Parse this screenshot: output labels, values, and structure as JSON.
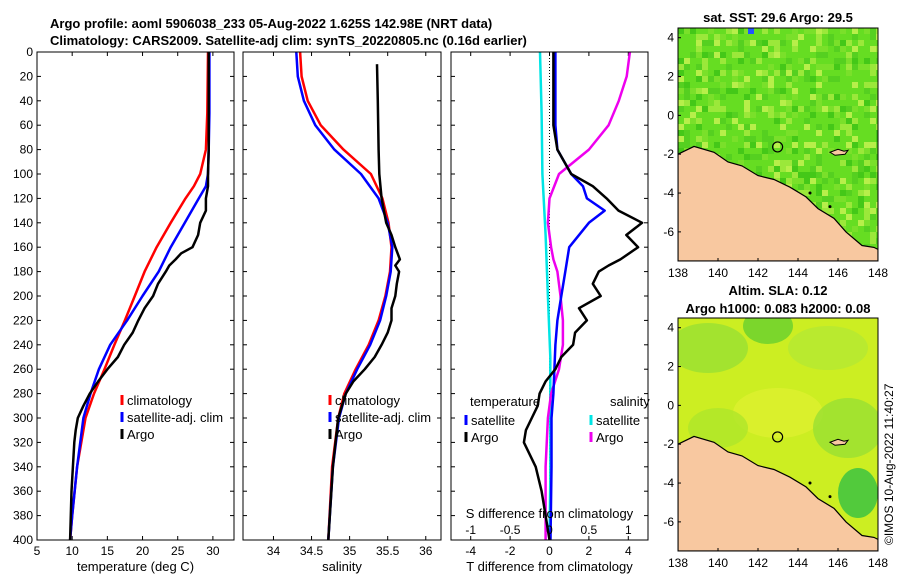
{
  "titles": {
    "line1": "Argo profile: aoml 5906038_233 05-Aug-2022 1.625S 142.98E (NRT data)",
    "line2": "Climatology: CARS2009. Satellite-adj clim: synTS_20220805.nc (0.16d earlier)"
  },
  "copyright": "©IMOS 10-Aug-2022 11:40:27",
  "colors": {
    "climatology": "#ff0000",
    "satellite": "#0000ff",
    "argo": "#000000",
    "sal_sat": "#00e5e5",
    "sal_argo": "#ee00ee",
    "land": "#f8c8a0"
  },
  "chart_data": [
    {
      "type": "line",
      "name": "temperature",
      "xlabel": "temperature (deg C)",
      "ylabel": "",
      "xlim": [
        5,
        33
      ],
      "ylim": [
        400,
        0
      ],
      "xticks": [
        5,
        10,
        15,
        20,
        25,
        30
      ],
      "xtick_labels": [
        "5",
        "10",
        "15",
        "20",
        "25",
        "30"
      ],
      "yticks": [
        0,
        20,
        40,
        60,
        80,
        100,
        120,
        140,
        160,
        180,
        200,
        220,
        240,
        260,
        280,
        300,
        320,
        340,
        360,
        380,
        400
      ],
      "ytick_labels": [
        "0",
        "20",
        "40",
        "60",
        "80",
        "100",
        "120",
        "140",
        "160",
        "180",
        "200",
        "220",
        "240",
        "260",
        "280",
        "300",
        "320",
        "340",
        "360",
        "380",
        "400"
      ],
      "legend": {
        "position": "bottom-right",
        "entries": [
          "climatology",
          "satellite-adj. clim",
          "Argo"
        ]
      },
      "series": [
        {
          "name": "climatology",
          "color": "#ff0000",
          "depth": [
            0,
            50,
            80,
            100,
            110,
            120,
            140,
            160,
            180,
            200,
            220,
            240,
            260,
            280,
            300,
            340,
            380,
            400
          ],
          "values": [
            29.3,
            29.2,
            29.0,
            28.2,
            27.3,
            26.1,
            24.0,
            22.0,
            20.3,
            18.9,
            17.5,
            16.0,
            14.6,
            13.1,
            11.9,
            10.7,
            10.0,
            9.7
          ]
        },
        {
          "name": "satellite-adj. clim",
          "color": "#0000ff",
          "depth": [
            0,
            50,
            80,
            100,
            110,
            120,
            140,
            160,
            180,
            200,
            220,
            240,
            260,
            280,
            300,
            340,
            380,
            400
          ],
          "values": [
            29.5,
            29.5,
            29.4,
            29.3,
            29.0,
            28.0,
            26.0,
            24.0,
            22.3,
            20.0,
            17.8,
            15.4,
            13.8,
            12.6,
            11.6,
            10.7,
            10.0,
            9.7
          ]
        },
        {
          "name": "Argo",
          "color": "#000000",
          "depth": [
            0,
            50,
            80,
            100,
            110,
            120,
            130,
            140,
            150,
            160,
            165,
            170,
            175,
            180,
            190,
            200,
            210,
            220,
            230,
            240,
            250,
            260,
            270,
            280,
            290,
            300,
            310,
            320,
            340,
            360,
            380,
            400
          ],
          "values": [
            29.4,
            29.4,
            29.4,
            29.3,
            29.3,
            29.0,
            29.0,
            28.2,
            27.9,
            27.1,
            25.5,
            24.7,
            23.8,
            23.3,
            22.2,
            21.5,
            20.3,
            19.4,
            18.6,
            17.4,
            16.5,
            15.0,
            13.7,
            12.5,
            11.6,
            10.8,
            10.5,
            10.3,
            10.1,
            9.9,
            9.8,
            9.7
          ]
        }
      ]
    },
    {
      "type": "line",
      "name": "salinity",
      "xlabel": "salinity",
      "ylabel": "",
      "xlim": [
        33.6,
        36.2
      ],
      "ylim": [
        400,
        0
      ],
      "xticks": [
        34,
        34.5,
        35,
        35.5,
        36
      ],
      "xtick_labels": [
        "34",
        "34.5",
        "35",
        "35.5",
        "36"
      ],
      "legend": {
        "position": "bottom-right",
        "entries": [
          "climatology",
          "satellite-adj. clim",
          "Argo"
        ]
      },
      "series": [
        {
          "name": "climatology",
          "color": "#ff0000",
          "depth": [
            0,
            20,
            40,
            60,
            80,
            100,
            120,
            140,
            160,
            180,
            200,
            220,
            240,
            260,
            280,
            300,
            340,
            400
          ],
          "values": [
            34.35,
            34.37,
            34.45,
            34.62,
            34.92,
            35.28,
            35.43,
            35.51,
            35.55,
            35.53,
            35.47,
            35.38,
            35.25,
            35.08,
            34.93,
            34.85,
            34.77,
            34.72
          ]
        },
        {
          "name": "satellite-adj. clim",
          "color": "#0000ff",
          "depth": [
            0,
            20,
            40,
            60,
            80,
            100,
            120,
            140,
            160,
            180,
            200,
            220,
            240,
            260,
            280,
            300,
            340,
            400
          ],
          "values": [
            34.3,
            34.32,
            34.4,
            34.55,
            34.8,
            35.15,
            35.38,
            35.5,
            35.56,
            35.54,
            35.48,
            35.4,
            35.27,
            35.1,
            34.95,
            34.86,
            34.78,
            34.72
          ]
        },
        {
          "name": "Argo",
          "color": "#000000",
          "depth": [
            10,
            40,
            80,
            100,
            120,
            140,
            150,
            160,
            170,
            175,
            180,
            190,
            200,
            210,
            220,
            230,
            240,
            250,
            260,
            270,
            280,
            300,
            340,
            400
          ],
          "values": [
            35.36,
            35.37,
            35.38,
            35.39,
            35.42,
            35.48,
            35.55,
            35.6,
            35.66,
            35.6,
            35.65,
            35.62,
            35.6,
            35.55,
            35.55,
            35.5,
            35.42,
            35.33,
            35.2,
            35.05,
            34.95,
            34.85,
            34.78,
            34.72
          ]
        }
      ]
    },
    {
      "type": "line",
      "name": "difference from climatology",
      "xlabel": "T difference from climatology",
      "x2label": "S difference from climatology",
      "xlim": [
        -5,
        5
      ],
      "x2lim": [
        -1.25,
        1.25
      ],
      "ylim": [
        400,
        0
      ],
      "xticks": [
        -4,
        -2,
        0,
        2,
        4
      ],
      "xtick_labels": [
        "-4",
        "-2",
        "0",
        "2",
        "4"
      ],
      "x2ticks": [
        -1,
        -0.5,
        0,
        0.5,
        1
      ],
      "x2tick_labels": [
        "-1",
        "-0.5",
        "0",
        "0.5",
        "1"
      ],
      "legend_temperature": {
        "title": "temperature",
        "entries": [
          "satellite",
          "Argo"
        ]
      },
      "legend_salinity": {
        "title": "salinity",
        "entries": [
          "satellite",
          "Argo"
        ]
      },
      "series": [
        {
          "name": "T satellite",
          "color": "#0000ff",
          "depth": [
            0,
            60,
            80,
            100,
            110,
            120,
            130,
            140,
            160,
            180,
            200,
            220,
            240,
            260,
            280,
            300,
            340,
            400
          ],
          "values": [
            0.3,
            0.3,
            0.4,
            1.1,
            1.7,
            1.9,
            2.8,
            2.0,
            1.0,
            0.8,
            0.6,
            0.4,
            0.3,
            0.25,
            0.2,
            0.1,
            0.1,
            0.05
          ]
        },
        {
          "name": "T Argo",
          "color": "#000000",
          "depth": [
            0,
            60,
            80,
            100,
            110,
            120,
            130,
            140,
            150,
            160,
            170,
            175,
            180,
            190,
            200,
            210,
            220,
            230,
            240,
            250,
            260,
            270,
            280,
            290,
            300,
            310,
            320,
            340,
            360,
            380,
            400
          ],
          "values": [
            0.2,
            0.2,
            0.4,
            1.1,
            2.2,
            2.9,
            3.5,
            4.7,
            3.9,
            4.5,
            3.6,
            3.0,
            2.5,
            2.2,
            2.6,
            1.5,
            1.9,
            1.3,
            1.2,
            0.6,
            0.3,
            -0.2,
            -0.5,
            -0.6,
            -0.9,
            -1.2,
            -1.3,
            -0.7,
            -0.4,
            -0.2,
            0
          ]
        },
        {
          "name": "S satellite",
          "color": "#00e5e5",
          "depth": [
            0,
            50,
            100,
            150,
            200,
            250,
            300,
            350,
            400
          ],
          "values": [
            -0.12,
            -0.1,
            -0.09,
            -0.05,
            -0.02,
            0.01,
            0.01,
            0.01,
            0.0
          ]
        },
        {
          "name": "S Argo",
          "color": "#ee00ee",
          "depth": [
            0,
            20,
            40,
            60,
            80,
            100,
            120,
            140,
            160,
            170,
            180,
            200,
            220,
            240,
            260,
            280,
            300,
            340,
            400
          ],
          "values": [
            1.02,
            0.98,
            0.88,
            0.75,
            0.5,
            0.12,
            0.0,
            -0.02,
            0.02,
            0.05,
            0.1,
            0.14,
            0.17,
            0.17,
            0.12,
            0.02,
            -0.02,
            -0.05,
            -0.05
          ]
        }
      ]
    },
    {
      "type": "heatmap",
      "name": "sat SST map",
      "title": "sat. SST: 29.6 Argo: 29.5",
      "xlim": [
        138,
        148
      ],
      "ylim": [
        -7.5,
        4.5
      ],
      "xticks": [
        138,
        140,
        142,
        144,
        146,
        148
      ],
      "xtick_labels": [
        "138",
        "140",
        "142",
        "144",
        "146",
        "148"
      ],
      "yticks": [
        4,
        2,
        0,
        -2,
        -4,
        -6
      ],
      "ytick_labels": [
        "4",
        "2",
        "0",
        "-2",
        "-4",
        "-6"
      ],
      "marker": {
        "lon": 142.98,
        "lat": -1.625
      }
    },
    {
      "type": "heatmap",
      "name": "altimetry SLA map",
      "title": "Altim. SLA: 0.12",
      "subtitle": "Argo h1000: 0.083 h2000: 0.08",
      "xlim": [
        138,
        148
      ],
      "ylim": [
        -7.5,
        4.5
      ],
      "xticks": [
        138,
        140,
        142,
        144,
        146,
        148
      ],
      "xtick_labels": [
        "138",
        "140",
        "142",
        "144",
        "146",
        "148"
      ],
      "yticks": [
        4,
        2,
        0,
        -2,
        -4,
        -6
      ],
      "ytick_labels": [
        "4",
        "2",
        "0",
        "-2",
        "-4",
        "-6"
      ],
      "marker": {
        "lon": 142.98,
        "lat": -1.625
      }
    }
  ]
}
